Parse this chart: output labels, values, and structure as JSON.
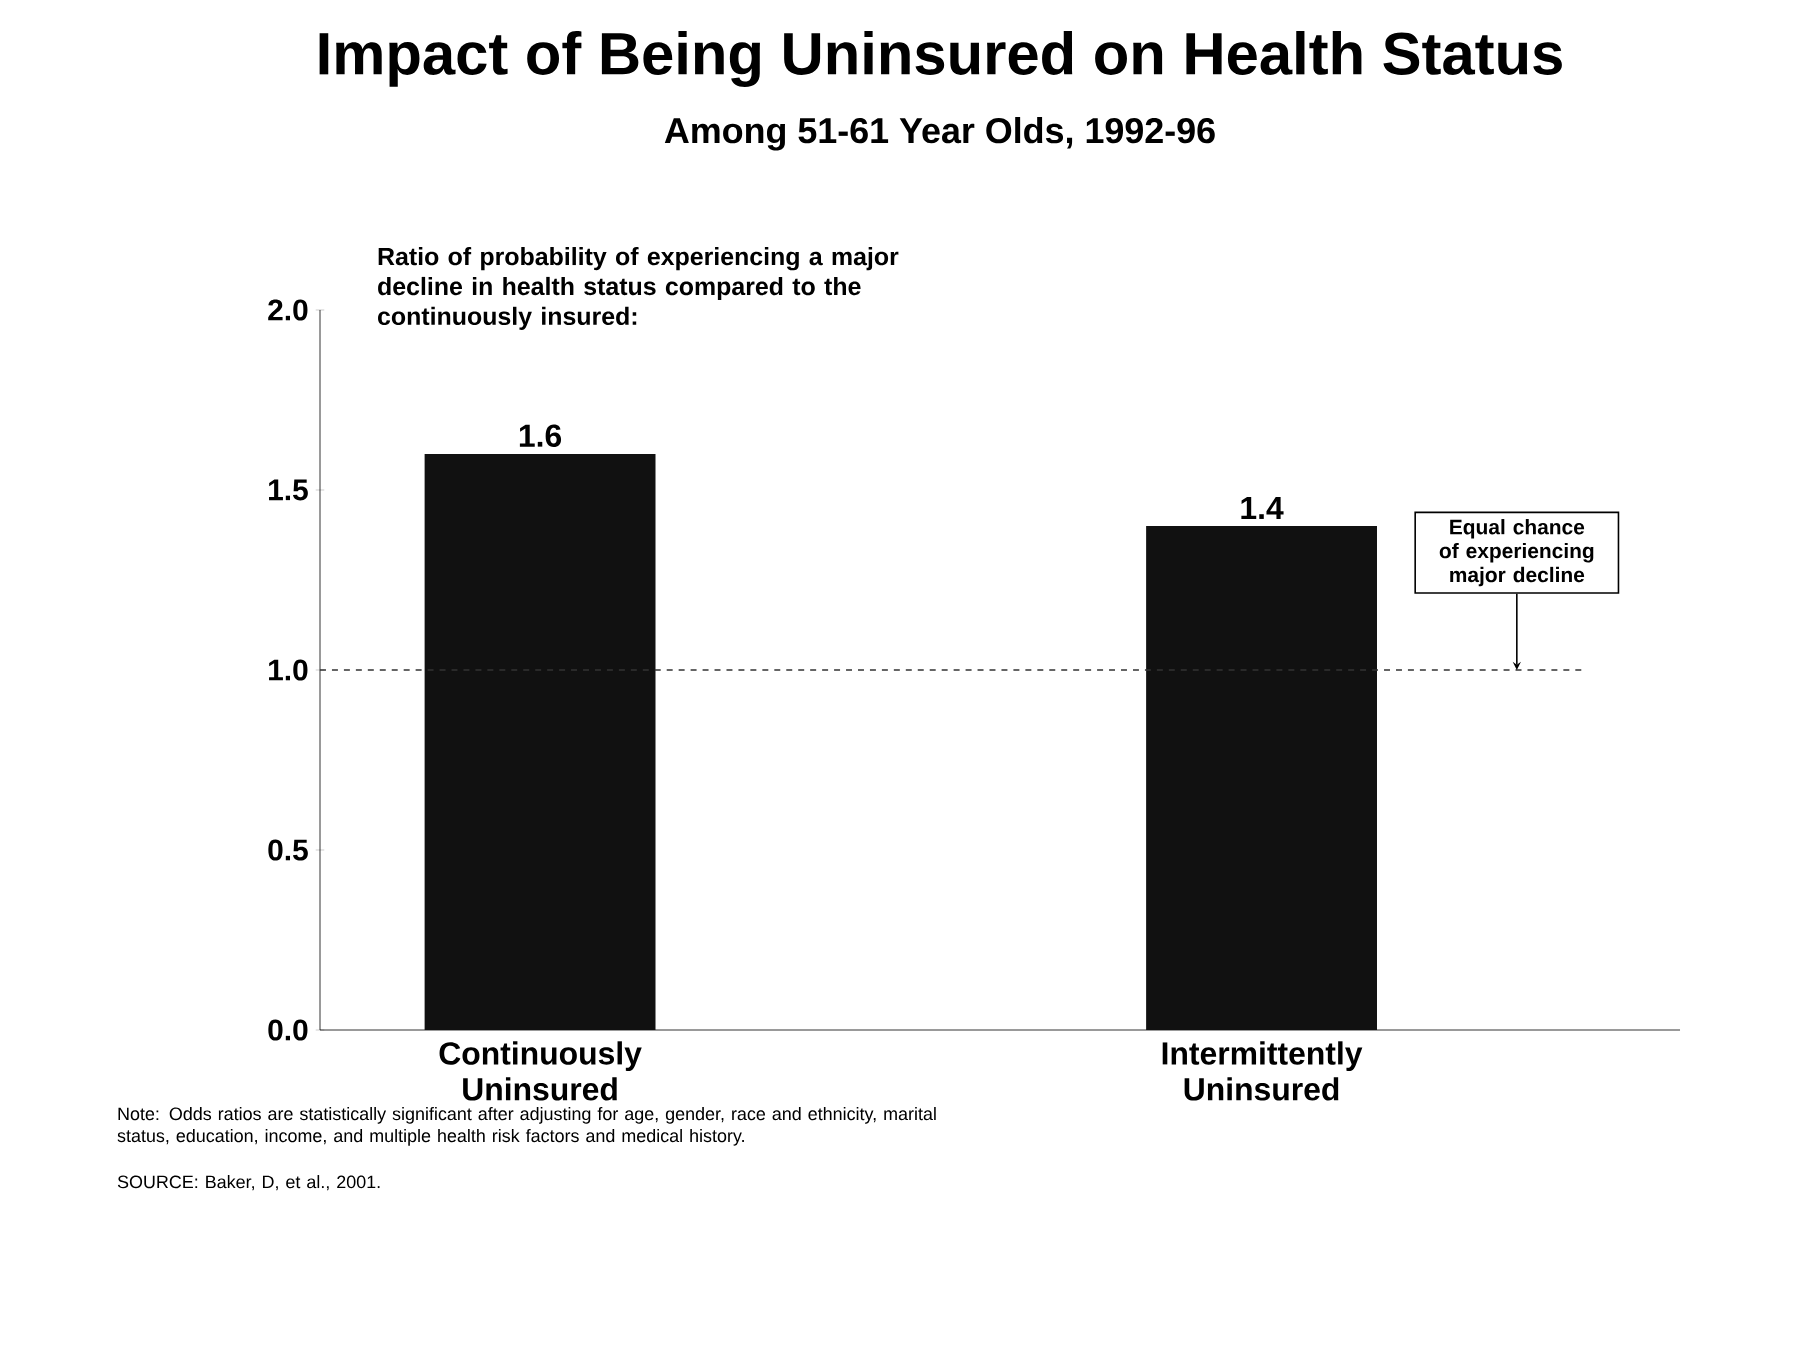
{
  "chart_data": {
    "type": "bar",
    "title": "Impact of Being Uninsured on Health Status",
    "subtitle": "Among 51-61 Year Olds, 1992-96",
    "ylabel": "Ratio of probability of experiencing a major decline in health status compared to the continuously insured:",
    "categories": [
      "Continuously Uninsured",
      "Intermittently Uninsured"
    ],
    "values": [
      1.6,
      1.4
    ],
    "color": "#111111",
    "data_labels": true,
    "ylim": [
      0,
      2
    ],
    "yticks": [
      {
        "value": 0,
        "label": "0.0"
      },
      {
        "value": 0.5,
        "label": "0.5"
      },
      {
        "value": 1,
        "label": "1.0"
      },
      {
        "value": 1.5,
        "label": "1.5"
      },
      {
        "value": 2,
        "label": "2.0"
      }
    ],
    "ref_lines": [
      {
        "axis": "y",
        "value": 1.0,
        "label": "Equal chance of experiencing major decline",
        "line_style": "dashed",
        "color": "#333333"
      }
    ],
    "annotations": [
      "Note: Odds ratios are statistically significant after adjusting for age, gender, race and ethnicity, marital status, education, income, and multiple health risk factors and medical history.",
      "SOURCE: Baker, D, et al., 2001."
    ]
  }
}
